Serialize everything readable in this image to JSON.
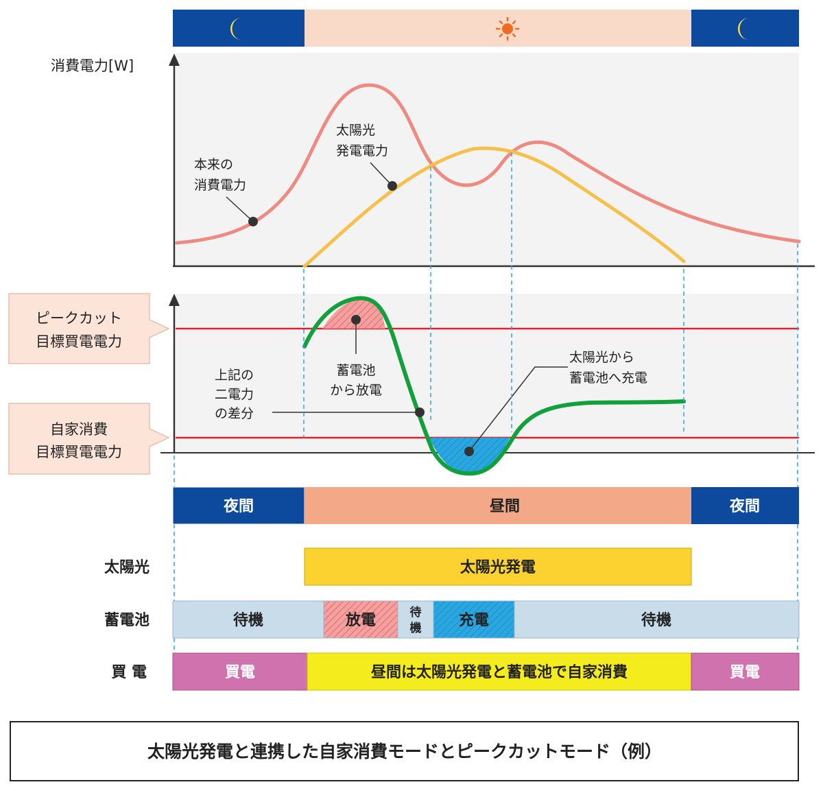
{
  "colors": {
    "night": "#0d4a9e",
    "day": "#f9d9c7",
    "day_bar": "#f3a987",
    "panel": "#f3f3f3",
    "consumption": "#ee8a80",
    "solar": "#f7c04a",
    "net": "#12a03c",
    "target_line": "#e0202a",
    "solar_bar": "#fcd230",
    "battery_standby": "#c8dcea",
    "battery_discharge": "#f2a0a0",
    "battery_charge": "#2aa7e0",
    "buy": "#cf72ae",
    "self_use": "#f5ec1d",
    "callout_bg": "#fce4d8",
    "dashed": "#2aa7e0"
  },
  "icons": {
    "night": "moon-icon",
    "day": "sun-icon"
  },
  "top_chart": {
    "y_axis_label": "消費電力[W]",
    "consumption_label": [
      "本来の",
      "消費電力"
    ],
    "solar_label": [
      "太陽光",
      "発電電力"
    ]
  },
  "bottom_chart": {
    "peak_cut_callout": [
      "ピークカット",
      "目標買電電力"
    ],
    "self_consumption_callout": [
      "自家消費",
      "目標買電電力"
    ],
    "difference_label": [
      "上記の",
      "二電力",
      "の差分"
    ],
    "discharge_label": [
      "蓄電池",
      "から放電"
    ],
    "charge_label": [
      "太陽光から",
      "蓄電池へ充電"
    ]
  },
  "timeline": {
    "period": {
      "night_left": "夜間",
      "day": "昼間",
      "night_right": "夜間"
    },
    "solar_row_label": "太陽光",
    "solar_bar": "太陽光発電",
    "battery_row_label": "蓄電池",
    "battery": {
      "standby_left": "待機",
      "discharge": "放電",
      "standby_mid": [
        "待",
        "機"
      ],
      "charge": "充電",
      "standby_right": "待機"
    },
    "buy_row_label": "買 電",
    "buy": {
      "left": "買電",
      "middle": "昼間は太陽光発電と蓄電池で自家消費",
      "right": "買電"
    }
  },
  "caption": "太陽光発電と連携した自家消費モードとピークカットモード（例）"
}
